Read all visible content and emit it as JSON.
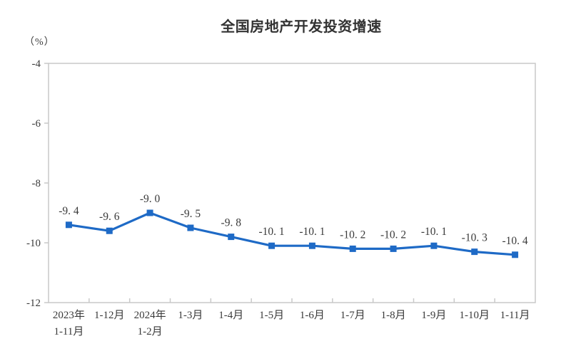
{
  "chart_data": {
    "type": "line",
    "title": "全国房地产开发投资增速",
    "unit_label": "（%）",
    "categories": [
      [
        "2023年",
        "1-11月"
      ],
      [
        "1-12月"
      ],
      [
        "2024年",
        "1-2月"
      ],
      [
        "1-3月"
      ],
      [
        "1-4月"
      ],
      [
        "1-5月"
      ],
      [
        "1-6月"
      ],
      [
        "1-7月"
      ],
      [
        "1-8月"
      ],
      [
        "1-9月"
      ],
      [
        "1-10月"
      ],
      [
        "1-11月"
      ]
    ],
    "series": [
      {
        "name": "全国房地产开发投资增速",
        "values": [
          -9.4,
          -9.6,
          -9.0,
          -9.5,
          -9.8,
          -10.1,
          -10.1,
          -10.2,
          -10.2,
          -10.1,
          -10.3,
          -10.4
        ],
        "point_labels": [
          "-9. 4",
          "-9. 6",
          "-9. 0",
          "-9. 5",
          "-9. 8",
          "-10. 1",
          "-10. 1",
          "-10. 2",
          "-10. 2",
          "-10. 1",
          "-10. 3",
          "-10. 4"
        ]
      }
    ],
    "ylim": [
      -12,
      -4
    ],
    "yticks": [
      -4,
      -6,
      -8,
      -10,
      -12
    ],
    "ytick_labels": [
      "-4",
      "-6",
      "-8",
      "-10",
      "-12"
    ],
    "grid": false,
    "legend_position": "none",
    "colors": {
      "line": "#1e6ac6",
      "marker": "#1e6ac6",
      "axis": "#c9c9c9",
      "text": "#3a3a3a",
      "title": "#333333",
      "background": "#ffffff"
    },
    "marker_shape": "square"
  }
}
